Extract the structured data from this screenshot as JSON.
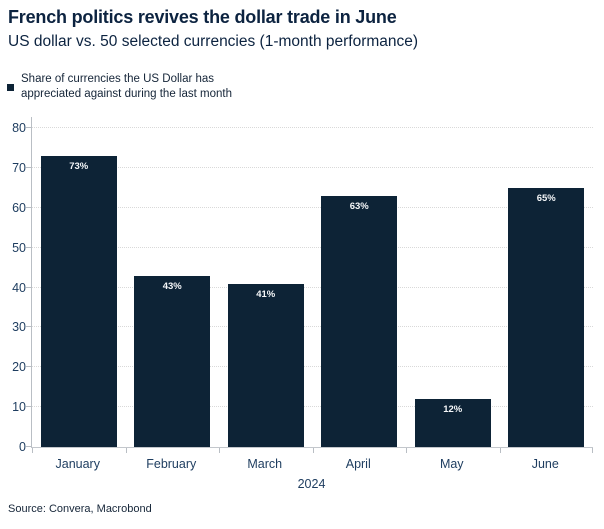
{
  "header": {
    "title": "French politics revives the dollar trade in June",
    "subtitle": "US dollar vs. 50 selected currencies (1-month performance)"
  },
  "legend": {
    "label_line1": "Share of currencies the US Dollar has",
    "label_line2": "appreciated against during the last month",
    "marker_color": "#0d2336"
  },
  "chart_data": {
    "type": "bar",
    "categories": [
      "January",
      "February",
      "March",
      "April",
      "May",
      "June"
    ],
    "values": [
      73,
      43,
      41,
      63,
      12,
      65
    ],
    "bar_labels": [
      "73%",
      "43%",
      "41%",
      "63%",
      "12%",
      "65%"
    ],
    "title": "French politics revives the dollar trade in June",
    "subtitle": "US dollar vs. 50 selected currencies (1-month performance)",
    "xlabel": "2024",
    "ylabel": "",
    "ylim": [
      0,
      80
    ],
    "y_ticks": [
      0,
      10,
      20,
      30,
      40,
      50,
      60,
      70,
      80
    ],
    "grid": "horizontal-dotted",
    "legend_position": "top-left",
    "legend_entries": [
      "Share of currencies the US Dollar has appreciated against during the last month"
    ],
    "bar_color": "#0d2336",
    "bar_label_color": "#f5f7f9"
  },
  "footer": {
    "source": "Source: Convera, Macrobond"
  },
  "colors": {
    "background": "#ffffff",
    "title_text": "#0c2340",
    "axis_text": "#1d3c5f",
    "grid_line": "#d9d9d9",
    "axis_line": "#b9bec4",
    "bar_fill": "#0d2336"
  }
}
